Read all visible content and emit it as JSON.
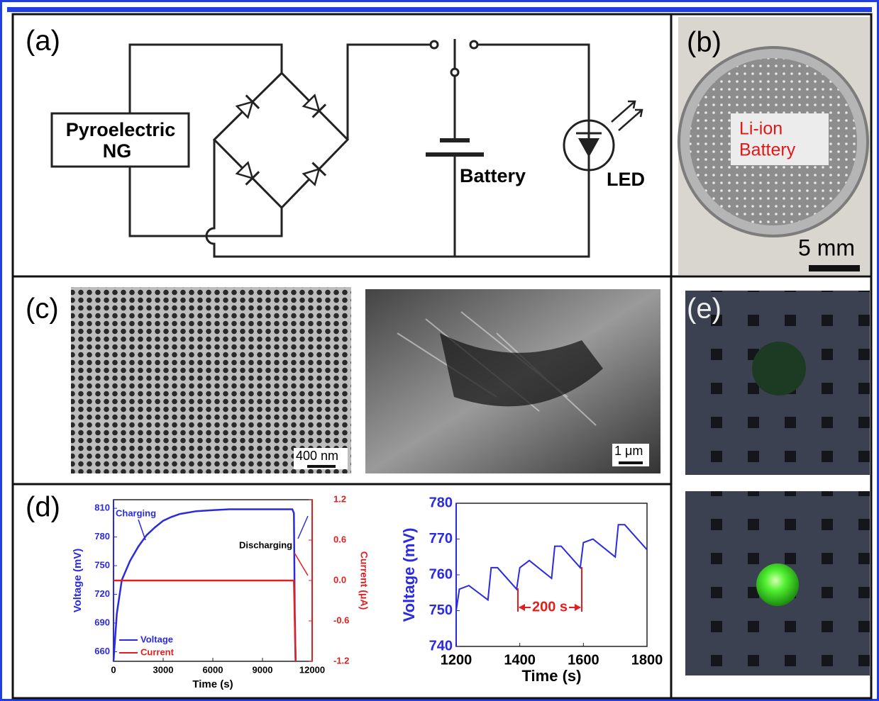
{
  "panels": {
    "a": {
      "label": "(a)",
      "source": "Pyroelectric",
      "source2": "NG",
      "battery": "Battery",
      "led": "LED"
    },
    "b": {
      "label": "(b)",
      "text1": "Li-ion",
      "text2": "Battery",
      "scale": "5 mm"
    },
    "c": {
      "label": "(c)",
      "scale_left": "400 nm",
      "scale_right": "1 μm"
    },
    "d": {
      "label": "(d)"
    },
    "e": {
      "label": "(e)"
    }
  },
  "chart_data": [
    {
      "type": "line",
      "x_label": "Time (s)",
      "y_label": "Voltage (mV)",
      "y2_label": "Current (μA)",
      "annotations": [
        "Charging",
        "Discharging"
      ],
      "legend": "lower left",
      "xlim": [
        0,
        12000
      ],
      "xticks": [
        0,
        3000,
        6000,
        9000,
        12000
      ],
      "ylim": [
        650,
        819
      ],
      "yticks": [
        660,
        690,
        720,
        750,
        780,
        810
      ],
      "y2lim": [
        -1.2,
        1.2
      ],
      "y2ticks": [
        -1.2,
        -0.6,
        {
          "value": 0,
          "label": "0.0"
        },
        0.6,
        1.2
      ],
      "x": [
        0,
        200,
        500,
        1000,
        1500,
        2000,
        2500,
        3000,
        3500,
        4000,
        5000,
        6000,
        7000,
        8000,
        9000,
        10000,
        10800,
        10900,
        10950,
        11000
      ],
      "series": [
        {
          "name": "Voltage",
          "color": "#2a2ae0",
          "values": [
            650,
            700,
            735,
            755,
            770,
            782,
            790,
            797,
            801,
            804,
            807,
            808,
            809,
            809,
            809,
            809,
            809,
            805,
            700,
            650
          ]
        },
        {
          "name": "Current",
          "color": "#e02020",
          "axis": "y2",
          "values": [
            0,
            0,
            0,
            0,
            0,
            0,
            0,
            0,
            0,
            0,
            0,
            0,
            0,
            0,
            0,
            0,
            0,
            0,
            -0.6,
            -1.2
          ]
        }
      ]
    },
    {
      "type": "line",
      "x_label": "Time (s)",
      "y_label": "Voltage (mV)",
      "annotations": [
        "200 s"
      ],
      "xlim": [
        1200,
        1800
      ],
      "xticks": [
        1200,
        1400,
        1600,
        1800
      ],
      "ylim": [
        740,
        780
      ],
      "yticks": [
        740,
        750,
        760,
        770,
        780
      ],
      "color": "#2a2ae0",
      "x": [
        1200,
        1210,
        1240,
        1300,
        1310,
        1330,
        1390,
        1400,
        1430,
        1500,
        1510,
        1530,
        1590,
        1600,
        1630,
        1700,
        1710,
        1730,
        1800
      ],
      "values": [
        750,
        756,
        757,
        753,
        762,
        762,
        756,
        762,
        764,
        759,
        768,
        768,
        762,
        769,
        770,
        765,
        774,
        774,
        767
      ]
    }
  ]
}
